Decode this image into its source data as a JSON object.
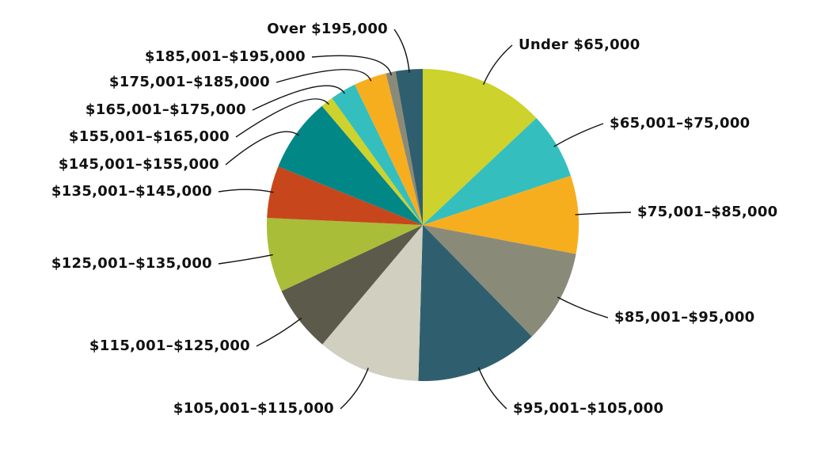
{
  "chart_data": {
    "type": "pie",
    "categories": [
      "Under $65,000",
      "$65,001–$75,000",
      "$75,001–$85,000",
      "$85,001–$95,000",
      "$95,001–$105,000",
      "$105,001–$115,000",
      "$115,001–$125,000",
      "$125,001–$135,000",
      "$135,001–$145,000",
      "$145,001–$155,000",
      "$155,001–$165,000",
      "$165,001–$175,000",
      "$175,001–$185,000",
      "$185,001–$195,000",
      "Over $195,000"
    ],
    "values": [
      13.0,
      6.9,
      8.1,
      9.7,
      12.8,
      10.7,
      6.9,
      7.7,
      5.4,
      7.7,
      1.3,
      2.7,
      3.4,
      1.0,
      2.8
    ],
    "colors": [
      "#cdd22c",
      "#35bebe",
      "#f6ae1f",
      "#8a8a79",
      "#2f5f6e",
      "#d0cfc0",
      "#5c5a4a",
      "#a9bd38",
      "#c8461c",
      "#028787",
      "#cdd22c",
      "#35bebe",
      "#f6ae1f",
      "#8a8a79",
      "#2f5f6e"
    ]
  }
}
